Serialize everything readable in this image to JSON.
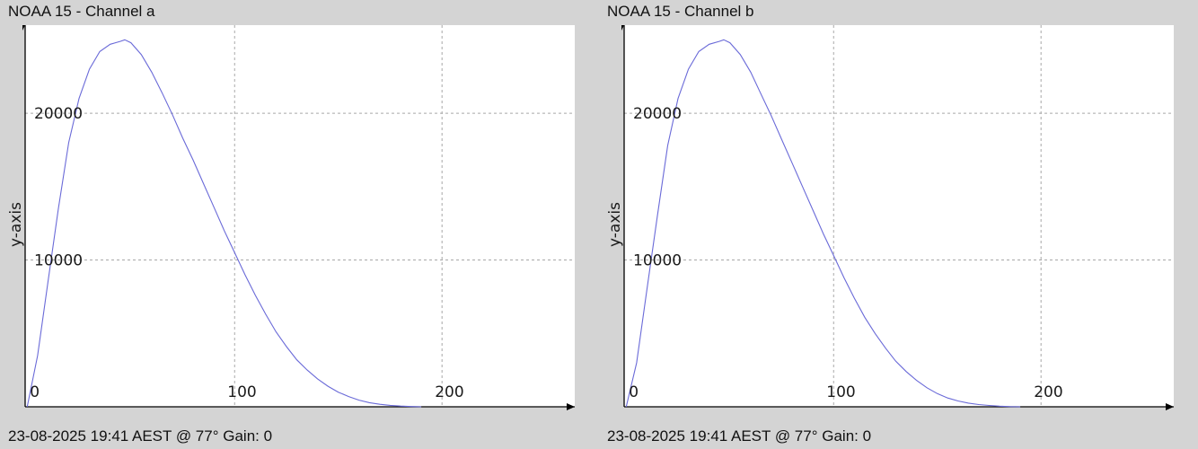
{
  "chart_data": [
    {
      "type": "line",
      "title": "NOAA 15 - Channel a",
      "footer": "23-08-2025 19:41 AEST @ 77° Gain: 0",
      "ylabel": "y-axis",
      "xlabel": "",
      "xlim": [
        -1,
        264
      ],
      "ylim": [
        0,
        26000
      ],
      "x_ticks": [
        0,
        100,
        200
      ],
      "y_ticks": [
        10000,
        20000
      ],
      "grid": true,
      "color": "#6a6ad8",
      "series": [
        {
          "x": [
            0,
            5,
            10,
            15,
            20,
            25,
            30,
            35,
            40,
            45,
            47,
            50,
            55,
            60,
            65,
            70,
            75,
            80,
            85,
            90,
            95,
            100,
            105,
            110,
            115,
            120,
            125,
            130,
            135,
            140,
            145,
            150,
            155,
            160,
            165,
            170,
            175,
            180,
            185,
            190
          ],
          "values": [
            0,
            3500,
            8500,
            13500,
            18000,
            21000,
            23000,
            24200,
            24700,
            24900,
            25000,
            24800,
            24000,
            22800,
            21400,
            19900,
            18300,
            16800,
            15200,
            13600,
            12000,
            10500,
            9000,
            7600,
            6300,
            5100,
            4100,
            3200,
            2500,
            1900,
            1400,
            1000,
            700,
            450,
            280,
            170,
            100,
            50,
            20,
            0
          ]
        }
      ]
    },
    {
      "type": "line",
      "title": "NOAA 15 - Channel b",
      "footer": "23-08-2025 19:41 AEST @ 77° Gain: 0",
      "ylabel": "y-axis",
      "xlabel": "",
      "xlim": [
        -1,
        264
      ],
      "ylim": [
        0,
        26000
      ],
      "x_ticks": [
        0,
        100,
        200
      ],
      "y_ticks": [
        10000,
        20000
      ],
      "grid": true,
      "color": "#6a6ad8",
      "series": [
        {
          "x": [
            0,
            5,
            10,
            15,
            20,
            25,
            30,
            35,
            40,
            45,
            47,
            50,
            55,
            60,
            65,
            70,
            75,
            80,
            85,
            90,
            95,
            100,
            105,
            110,
            115,
            120,
            125,
            130,
            135,
            140,
            145,
            150,
            155,
            160,
            165,
            170,
            175,
            180,
            185,
            190
          ],
          "values": [
            0,
            3000,
            8000,
            13000,
            17800,
            21000,
            23000,
            24200,
            24700,
            24900,
            25000,
            24800,
            24000,
            22800,
            21300,
            19800,
            18200,
            16600,
            15000,
            13400,
            11800,
            10300,
            8800,
            7400,
            6100,
            5000,
            4000,
            3100,
            2400,
            1800,
            1300,
            900,
            600,
            400,
            250,
            150,
            90,
            40,
            15,
            0
          ]
        }
      ]
    }
  ]
}
